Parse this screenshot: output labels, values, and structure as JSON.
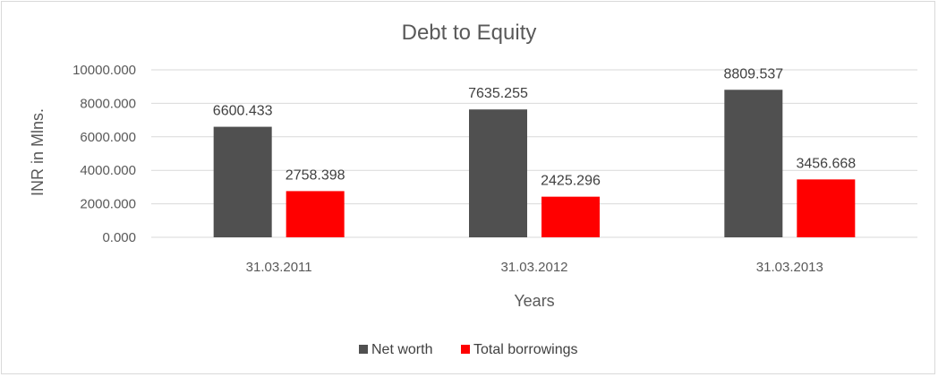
{
  "chart_data": {
    "type": "bar",
    "title": "Debt to Equity",
    "xlabel": "Years",
    "ylabel": "INR in Mlns.",
    "categories": [
      "31.03.2011",
      "31.03.2012",
      "31.03.2013"
    ],
    "series": [
      {
        "name": "Net worth",
        "color": "#505050",
        "values": [
          6600.433,
          7635.255,
          8809.537
        ],
        "labels": [
          "6600.433",
          "7635.255",
          "8809.537"
        ]
      },
      {
        "name": "Total borrowings",
        "color": "#ff0000",
        "values": [
          2758.398,
          2425.296,
          3456.668
        ],
        "labels": [
          "2758.398",
          "2425.296",
          "3456.668"
        ]
      }
    ],
    "ylim": [
      0,
      10000
    ],
    "yticks": [
      0,
      2000,
      4000,
      6000,
      8000,
      10000
    ],
    "ytick_labels": [
      "0.000",
      "2000.000",
      "4000.000",
      "6000.000",
      "8000.000",
      "10000.000"
    ],
    "grid": true,
    "legend_position": "bottom"
  }
}
